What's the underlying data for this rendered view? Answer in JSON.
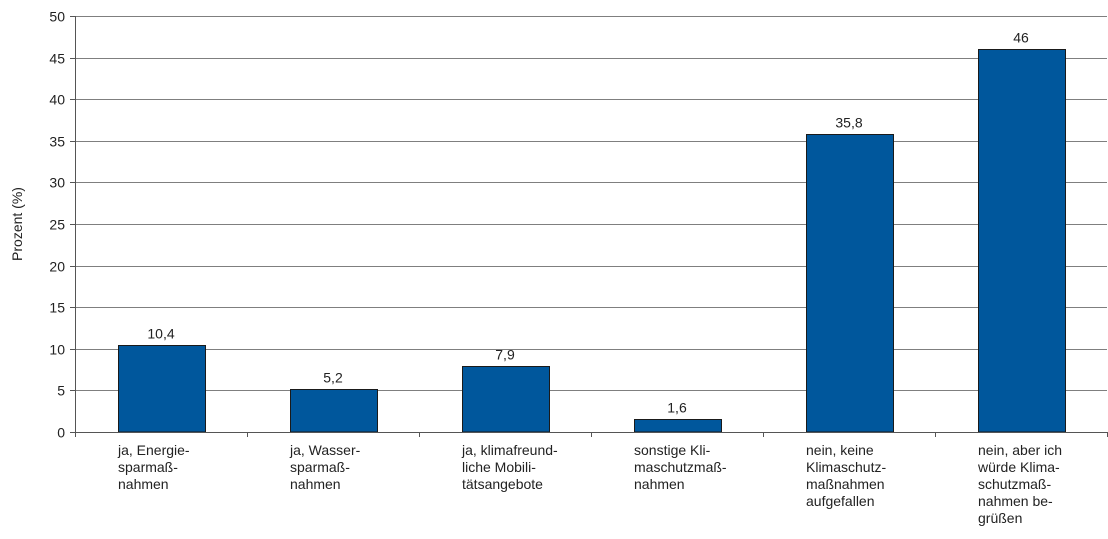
{
  "chart_data": {
    "type": "bar",
    "title": "",
    "xlabel": "",
    "ylabel": "Prozent (%)",
    "ylim": [
      0,
      50
    ],
    "yticks": [
      0,
      5,
      10,
      15,
      20,
      25,
      30,
      35,
      40,
      45,
      50
    ],
    "grid": true,
    "categories": [
      [
        "ja, Energie-",
        "sparmaß-",
        "nahmen"
      ],
      [
        "ja, Wasser-",
        "sparmaß-",
        "nahmen"
      ],
      [
        "ja, klimafreund-",
        "liche Mobili-",
        "tätsangebote"
      ],
      [
        "sonstige Kli-",
        "maschutzmaß-",
        "nahmen"
      ],
      [
        "nein, keine",
        "Klimaschutz-",
        "maßnahmen",
        "aufgefallen"
      ],
      [
        "nein, aber ich",
        "würde Klima-",
        "schutzmaß-",
        "nahmen be-",
        "grüßen"
      ]
    ],
    "values": [
      10.4,
      5.2,
      7.9,
      1.6,
      35.8,
      46
    ],
    "value_labels": [
      "10,4",
      "5,2",
      "7,9",
      "1,6",
      "35,8",
      "46"
    ],
    "colors": {
      "bar": "#00579c",
      "grid": "#7f7f7f",
      "axis": "#555555"
    }
  }
}
